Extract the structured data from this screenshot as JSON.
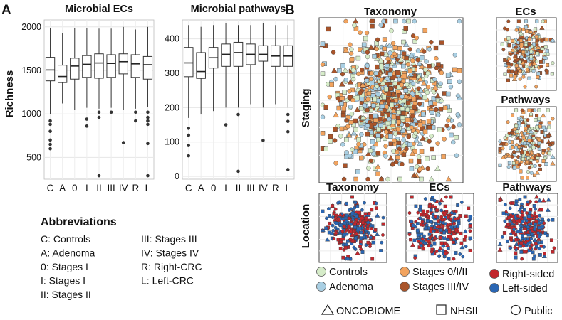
{
  "panel_a": {
    "letter": "A",
    "ylabel": "Richness",
    "charts": [
      {
        "type": "boxplot",
        "title": "Microbial ECs",
        "categories": [
          "C",
          "A",
          "0",
          "I",
          "II",
          "III",
          "IV",
          "R",
          "L"
        ],
        "ylim": [
          250,
          2080
        ],
        "yticks": [
          500,
          1000,
          1500,
          2000
        ],
        "boxes": [
          {
            "min": 1000,
            "q1": 1380,
            "median": 1505,
            "q3": 1650,
            "max": 1990,
            "outliers": [
              920,
              880,
              800,
              700,
              650,
              600
            ]
          },
          {
            "min": 1120,
            "q1": 1360,
            "median": 1430,
            "q3": 1560,
            "max": 1930,
            "outliers": []
          },
          {
            "min": 1050,
            "q1": 1400,
            "median": 1550,
            "q3": 1640,
            "max": 1990,
            "outliers": []
          },
          {
            "min": 1070,
            "q1": 1420,
            "median": 1570,
            "q3": 1670,
            "max": 1990,
            "outliers": [
              940,
              860
            ]
          },
          {
            "min": 1060,
            "q1": 1410,
            "median": 1585,
            "q3": 1690,
            "max": 1980,
            "outliers": [
              1020,
              960,
              290
            ]
          },
          {
            "min": 1070,
            "q1": 1420,
            "median": 1580,
            "q3": 1680,
            "max": 1980,
            "outliers": [
              1020
            ]
          },
          {
            "min": 1050,
            "q1": 1460,
            "median": 1600,
            "q3": 1690,
            "max": 2000,
            "outliers": [
              670
            ]
          },
          {
            "min": 1060,
            "q1": 1420,
            "median": 1575,
            "q3": 1680,
            "max": 1970,
            "outliers": [
              1020,
              920
            ]
          },
          {
            "min": 1080,
            "q1": 1400,
            "median": 1565,
            "q3": 1660,
            "max": 2000,
            "outliers": [
              1020,
              960,
              920,
              880,
              660,
              290
            ]
          }
        ]
      },
      {
        "type": "boxplot",
        "title": "Microbial pathways",
        "categories": [
          "C",
          "A",
          "0",
          "I",
          "II",
          "III",
          "IV",
          "R",
          "L"
        ],
        "ylim": [
          -8,
          455
        ],
        "yticks": [
          0,
          100,
          200,
          300,
          400
        ],
        "boxes": [
          {
            "min": 170,
            "q1": 290,
            "median": 330,
            "q3": 375,
            "max": 440,
            "outliers": [
              140,
              120,
              90,
              60
            ]
          },
          {
            "min": 180,
            "q1": 285,
            "median": 305,
            "q3": 360,
            "max": 435,
            "outliers": []
          },
          {
            "min": 190,
            "q1": 315,
            "median": 345,
            "q3": 375,
            "max": 440,
            "outliers": []
          },
          {
            "min": 200,
            "q1": 320,
            "median": 355,
            "q3": 385,
            "max": 445,
            "outliers": [
              150
            ]
          },
          {
            "min": 200,
            "q1": 320,
            "median": 360,
            "q3": 390,
            "max": 440,
            "outliers": [
              180,
              15
            ]
          },
          {
            "min": 210,
            "q1": 325,
            "median": 355,
            "q3": 385,
            "max": 440,
            "outliers": []
          },
          {
            "min": 200,
            "q1": 335,
            "median": 355,
            "q3": 380,
            "max": 445,
            "outliers": [
              105
            ]
          },
          {
            "min": 210,
            "q1": 320,
            "median": 350,
            "q3": 380,
            "max": 440,
            "outliers": []
          },
          {
            "min": 200,
            "q1": 320,
            "median": 350,
            "q3": 380,
            "max": 440,
            "outliers": [
              180,
              160,
              130,
              20
            ]
          }
        ]
      }
    ],
    "abbreviations": {
      "title": "Abbreviations",
      "col1": [
        "C: Controls",
        "A: Adenoma",
        "0: Stages I",
        "I: Stages I",
        "II: Stages II"
      ],
      "col2": [
        "III: Stages III",
        "IV: Stages IV",
        "R: Right-CRC",
        "L: Left-CRC"
      ]
    }
  },
  "panel_b": {
    "letter": "B",
    "row_labels": {
      "staging": "Staging",
      "location": "Location"
    },
    "staging_titles": {
      "taxonomy": "Taxonomy",
      "ecs": "ECs",
      "pathways": "Pathways"
    },
    "location_titles": {
      "taxonomy": "Taxonomy",
      "ecs": "ECs",
      "pathways": "Pathways"
    },
    "legend": {
      "staging": [
        {
          "label": "Controls",
          "color": "#d6ecc9"
        },
        {
          "label": "Adenoma",
          "color": "#a9cfe3"
        },
        {
          "label": "Stages 0/I/II",
          "color": "#f2a35e"
        },
        {
          "label": "Stages III/IV",
          "color": "#a9542a"
        }
      ],
      "location": [
        {
          "label": "Right-sided",
          "color": "#c2272d"
        },
        {
          "label": "Left-sided",
          "color": "#2a66b3"
        }
      ],
      "shapes": [
        {
          "label": "ONCOBIOME",
          "shape": "triangle"
        },
        {
          "label": "NHSII",
          "shape": "square"
        },
        {
          "label": "Public",
          "shape": "circle"
        }
      ]
    }
  }
}
